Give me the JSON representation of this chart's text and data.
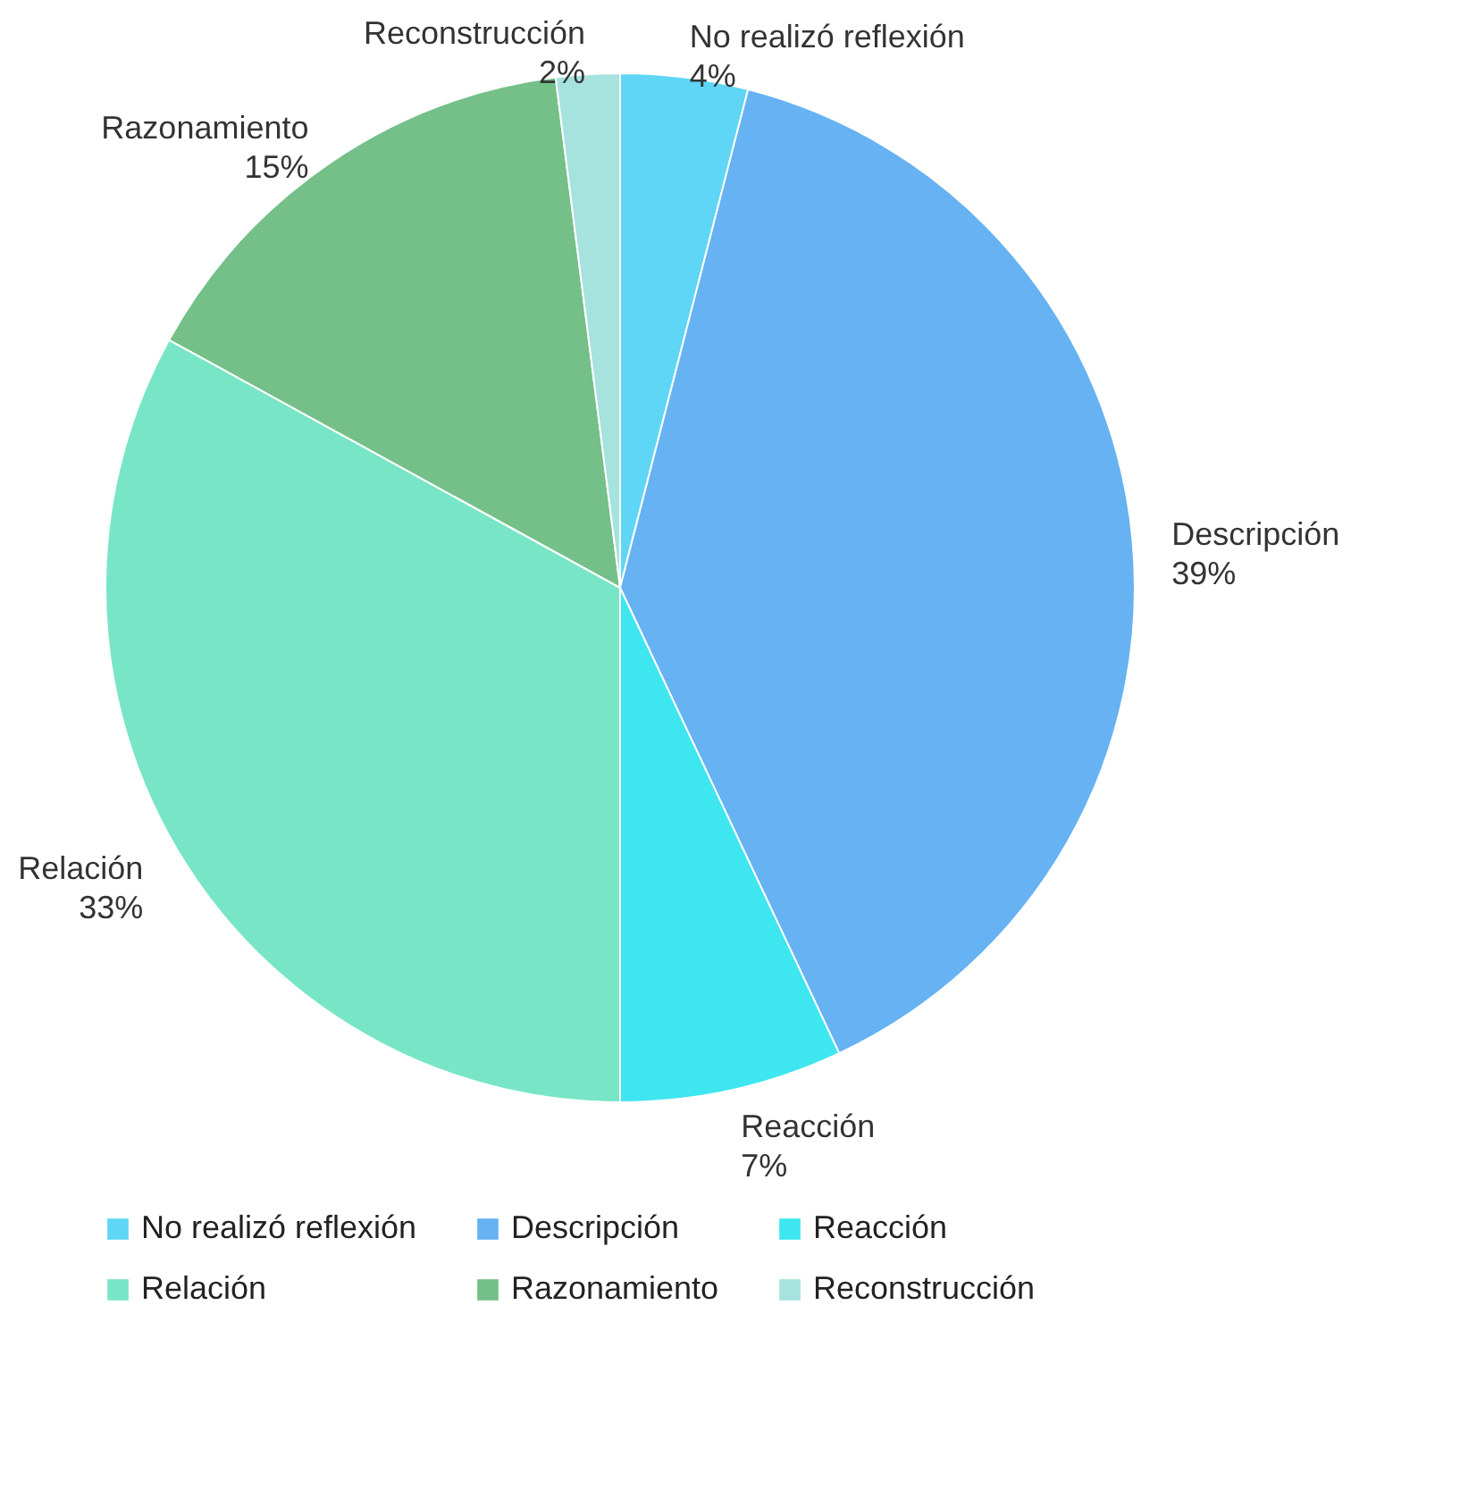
{
  "chart_data": {
    "type": "pie",
    "categories": [
      "No realizó reflexión",
      "Descripción",
      "Reacción",
      "Relación",
      "Razonamiento",
      "Reconstrucción"
    ],
    "values": [
      4,
      39,
      7,
      33,
      15,
      2
    ],
    "value_labels": [
      "4%",
      "39%",
      "7%",
      "33%",
      "15%",
      "2%"
    ],
    "colors": [
      "#5fd6f5",
      "#66b2f2",
      "#3ee6f0",
      "#78e6c6",
      "#74c088",
      "#a6e2de"
    ],
    "legend": "bottom"
  }
}
